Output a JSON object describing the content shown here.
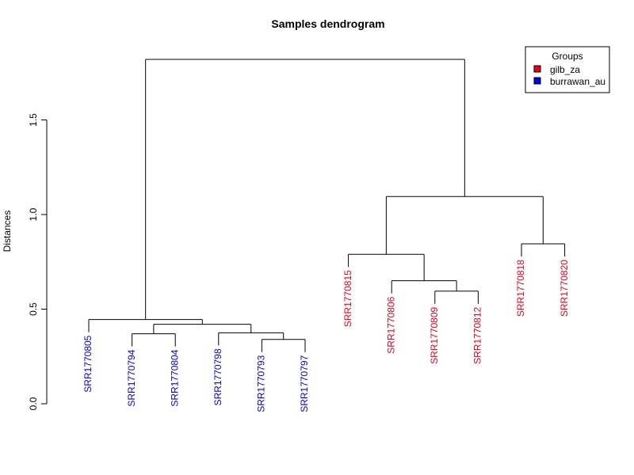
{
  "chart_data": {
    "type": "dendrogram",
    "title": "Samples dendrogram",
    "ylabel": "Distances",
    "xlabel": "",
    "ylim": [
      0,
      2
    ],
    "yticks": [
      "0.0",
      "0.5",
      "1.0",
      "1.5"
    ],
    "legend": {
      "title": "Groups",
      "placement": "top-right",
      "items": [
        {
          "label": "gilb_za",
          "color": "#e8001c"
        },
        {
          "label": "burrawan_au",
          "color": "#0000ee"
        }
      ]
    },
    "leaves": [
      {
        "label": "SRR1770805",
        "group": "burrawan_au",
        "color": "#0000ee"
      },
      {
        "label": "SRR1770794",
        "group": "burrawan_au",
        "color": "#0000ee"
      },
      {
        "label": "SRR1770804",
        "group": "burrawan_au",
        "color": "#0000ee"
      },
      {
        "label": "SRR1770798",
        "group": "burrawan_au",
        "color": "#0000ee"
      },
      {
        "label": "SRR1770793",
        "group": "burrawan_au",
        "color": "#0000ee"
      },
      {
        "label": "SRR1770797",
        "group": "burrawan_au",
        "color": "#0000ee"
      },
      {
        "label": "SRR1770815",
        "group": "gilb_za",
        "color": "#e8001c"
      },
      {
        "label": "SRR1770806",
        "group": "gilb_za",
        "color": "#e8001c"
      },
      {
        "label": "SRR1770809",
        "group": "gilb_za",
        "color": "#e8001c"
      },
      {
        "label": "SRR1770812",
        "group": "gilb_za",
        "color": "#e8001c"
      },
      {
        "label": "SRR1770818",
        "group": "gilb_za",
        "color": "#e8001c"
      },
      {
        "label": "SRR1770820",
        "group": "gilb_za",
        "color": "#e8001c"
      }
    ],
    "merges": [
      {
        "a": "L4",
        "b": "L5",
        "height": 0.34
      },
      {
        "a": "L1",
        "b": "L2",
        "height": 0.37
      },
      {
        "a": "L3",
        "b": "M0",
        "height": 0.375
      },
      {
        "a": "M1",
        "b": "M2",
        "height": 0.42
      },
      {
        "a": "L0",
        "b": "M3",
        "height": 0.445
      },
      {
        "a": "L8",
        "b": "L9",
        "height": 0.595
      },
      {
        "a": "L7",
        "b": "M5",
        "height": 0.65
      },
      {
        "a": "L6",
        "b": "M6",
        "height": 0.79
      },
      {
        "a": "L10",
        "b": "L11",
        "height": 0.845
      },
      {
        "a": "M7",
        "b": "M8",
        "height": 1.095
      },
      {
        "a": "M4",
        "b": "M9",
        "height": 1.82
      }
    ]
  }
}
